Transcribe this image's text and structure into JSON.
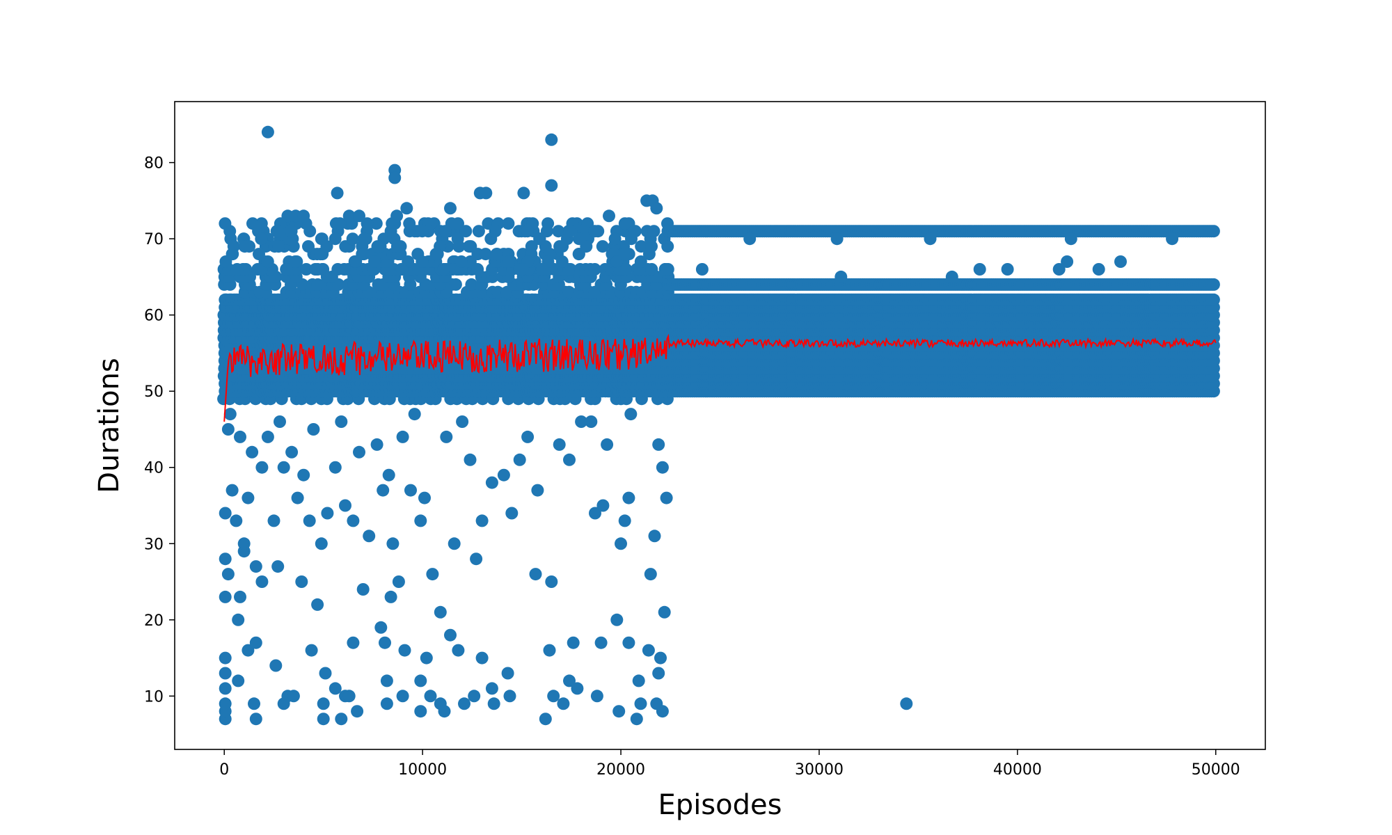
{
  "chart_data": {
    "type": "scatter",
    "title": "",
    "xlabel": "Episodes",
    "ylabel": "Durations",
    "xlim": [
      -2500,
      52500
    ],
    "ylim": [
      3,
      88
    ],
    "xticks": [
      0,
      10000,
      20000,
      30000,
      40000,
      50000
    ],
    "yticks": [
      10,
      20,
      30,
      40,
      50,
      60,
      70,
      80
    ],
    "grid": false,
    "legend": "none",
    "colors": {
      "scatter": "#1f77b4",
      "line": "#ff0000",
      "frame": "#000000"
    },
    "series": [
      {
        "kind": "scatter",
        "description_note": "",
        "band_early": {
          "x_range": [
            0,
            22400
          ],
          "y_range": [
            49,
            66
          ]
        },
        "band_late": {
          "x_range": [
            22400,
            50000
          ],
          "y_range": [
            50,
            62
          ]
        },
        "late_upper_rows": [
          64,
          71
        ],
        "outliers": [
          [
            2200,
            84
          ],
          [
            16500,
            83
          ],
          [
            16500,
            77
          ],
          [
            8600,
            79
          ],
          [
            8600,
            78
          ],
          [
            5700,
            76
          ],
          [
            12900,
            76
          ],
          [
            13200,
            76
          ],
          [
            15100,
            76
          ],
          [
            21300,
            75
          ],
          [
            21600,
            75
          ],
          [
            21800,
            74
          ],
          [
            11400,
            74
          ],
          [
            9200,
            74
          ],
          [
            3200,
            73
          ],
          [
            3600,
            73
          ],
          [
            4000,
            73
          ],
          [
            6300,
            73
          ],
          [
            6800,
            73
          ],
          [
            8700,
            73
          ],
          [
            19400,
            73
          ],
          [
            24100,
            66
          ],
          [
            26500,
            70
          ],
          [
            30900,
            70
          ],
          [
            31100,
            65
          ],
          [
            35600,
            70
          ],
          [
            36700,
            65
          ],
          [
            38100,
            66
          ],
          [
            39500,
            66
          ],
          [
            42100,
            66
          ],
          [
            42500,
            67
          ],
          [
            42700,
            70
          ],
          [
            44100,
            66
          ],
          [
            45200,
            67
          ],
          [
            47800,
            70
          ],
          [
            34400,
            9
          ],
          [
            50,
            7
          ],
          [
            50,
            8
          ],
          [
            50,
            9
          ],
          [
            50,
            11
          ],
          [
            50,
            13
          ],
          [
            50,
            15
          ],
          [
            200,
            26
          ],
          [
            50,
            28
          ],
          [
            50,
            23
          ],
          [
            50,
            34
          ],
          [
            700,
            12
          ],
          [
            700,
            20
          ],
          [
            800,
            23
          ],
          [
            1000,
            29
          ],
          [
            1200,
            16
          ],
          [
            1500,
            9
          ],
          [
            1600,
            7
          ],
          [
            1600,
            17
          ],
          [
            1900,
            25
          ],
          [
            2600,
            14
          ],
          [
            2700,
            27
          ],
          [
            3000,
            9
          ],
          [
            3200,
            10
          ],
          [
            3500,
            10
          ],
          [
            3900,
            25
          ],
          [
            4400,
            16
          ],
          [
            4700,
            22
          ],
          [
            5000,
            7
          ],
          [
            5000,
            9
          ],
          [
            5100,
            13
          ],
          [
            5600,
            11
          ],
          [
            5900,
            7
          ],
          [
            6100,
            10
          ],
          [
            6300,
            10
          ],
          [
            6500,
            17
          ],
          [
            6700,
            8
          ],
          [
            7000,
            24
          ],
          [
            7900,
            19
          ],
          [
            8100,
            17
          ],
          [
            8200,
            12
          ],
          [
            8200,
            9
          ],
          [
            8400,
            23
          ],
          [
            9000,
            10
          ],
          [
            9100,
            16
          ],
          [
            9900,
            8
          ],
          [
            9900,
            12
          ],
          [
            10200,
            15
          ],
          [
            10400,
            10
          ],
          [
            10900,
            9
          ],
          [
            11100,
            8
          ],
          [
            11400,
            18
          ],
          [
            11800,
            16
          ],
          [
            12100,
            9
          ],
          [
            12600,
            10
          ],
          [
            13000,
            15
          ],
          [
            13500,
            11
          ],
          [
            13600,
            9
          ],
          [
            14300,
            13
          ],
          [
            14400,
            10
          ],
          [
            15700,
            26
          ],
          [
            16200,
            7
          ],
          [
            16400,
            16
          ],
          [
            16600,
            10
          ],
          [
            17100,
            9
          ],
          [
            17400,
            12
          ],
          [
            17600,
            17
          ],
          [
            17800,
            11
          ],
          [
            18800,
            10
          ],
          [
            19000,
            17
          ],
          [
            19800,
            20
          ],
          [
            19900,
            8
          ],
          [
            20400,
            17
          ],
          [
            20800,
            7
          ],
          [
            20900,
            12
          ],
          [
            21000,
            9
          ],
          [
            21400,
            16
          ],
          [
            21800,
            9
          ],
          [
            21900,
            13
          ],
          [
            22000,
            15
          ],
          [
            22100,
            8
          ],
          [
            22200,
            21
          ],
          [
            22300,
            36
          ],
          [
            22100,
            40
          ],
          [
            21900,
            43
          ],
          [
            21700,
            31
          ],
          [
            21500,
            26
          ],
          [
            20500,
            47
          ],
          [
            20400,
            36
          ],
          [
            20200,
            33
          ],
          [
            20000,
            30
          ],
          [
            19300,
            43
          ],
          [
            19100,
            35
          ],
          [
            18700,
            34
          ],
          [
            18500,
            46
          ],
          [
            18000,
            46
          ],
          [
            17400,
            41
          ],
          [
            16900,
            43
          ],
          [
            16500,
            25
          ],
          [
            15800,
            37
          ],
          [
            15300,
            44
          ],
          [
            14900,
            41
          ],
          [
            14500,
            34
          ],
          [
            14100,
            39
          ],
          [
            13500,
            38
          ],
          [
            13000,
            33
          ],
          [
            12700,
            28
          ],
          [
            12400,
            41
          ],
          [
            12000,
            46
          ],
          [
            11600,
            30
          ],
          [
            11200,
            44
          ],
          [
            10900,
            21
          ],
          [
            10500,
            26
          ],
          [
            10100,
            36
          ],
          [
            9900,
            33
          ],
          [
            9600,
            47
          ],
          [
            9400,
            37
          ],
          [
            9000,
            44
          ],
          [
            8800,
            25
          ],
          [
            8500,
            30
          ],
          [
            8300,
            39
          ],
          [
            8000,
            37
          ],
          [
            7700,
            43
          ],
          [
            7300,
            31
          ],
          [
            6800,
            42
          ],
          [
            6500,
            33
          ],
          [
            6100,
            35
          ],
          [
            5900,
            46
          ],
          [
            5600,
            40
          ],
          [
            5200,
            34
          ],
          [
            4900,
            30
          ],
          [
            4500,
            45
          ],
          [
            4300,
            33
          ],
          [
            4000,
            39
          ],
          [
            3700,
            36
          ],
          [
            3400,
            42
          ],
          [
            3000,
            40
          ],
          [
            2800,
            46
          ],
          [
            2500,
            33
          ],
          [
            2200,
            44
          ],
          [
            1900,
            40
          ],
          [
            1600,
            27
          ],
          [
            1400,
            42
          ],
          [
            1200,
            36
          ],
          [
            1000,
            30
          ],
          [
            800,
            44
          ],
          [
            600,
            33
          ],
          [
            400,
            37
          ],
          [
            300,
            47
          ],
          [
            200,
            45
          ]
        ]
      },
      {
        "kind": "line",
        "description_note": "",
        "x_range": [
          0,
          50000
        ],
        "early_mean_start": 46,
        "early_mean": 54,
        "late_mean": 56.3
      }
    ]
  }
}
